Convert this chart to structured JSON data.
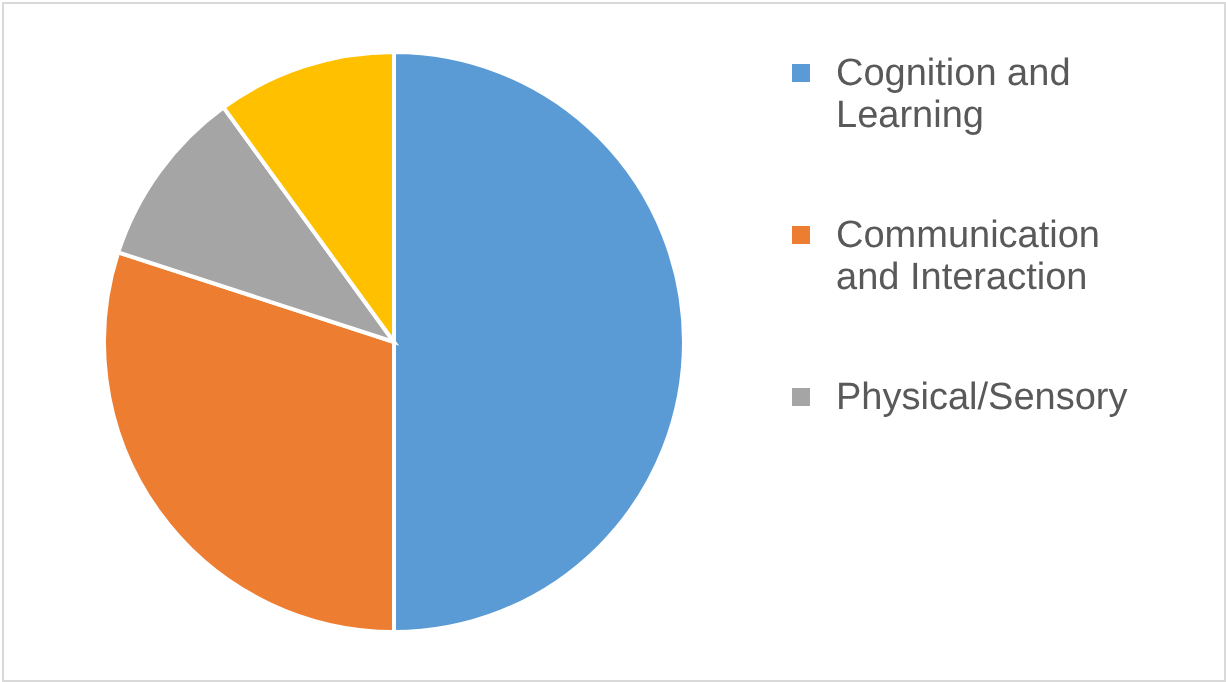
{
  "chart_data": {
    "type": "pie",
    "categories": [
      "Cognition and Learning",
      "Communication and Interaction",
      "Physical/Sensory",
      null
    ],
    "values": [
      50,
      30,
      10,
      10
    ],
    "colors": [
      "#5b9bd5",
      "#ed7d31",
      "#a5a5a5",
      "#ffc000"
    ],
    "legend": "right"
  }
}
